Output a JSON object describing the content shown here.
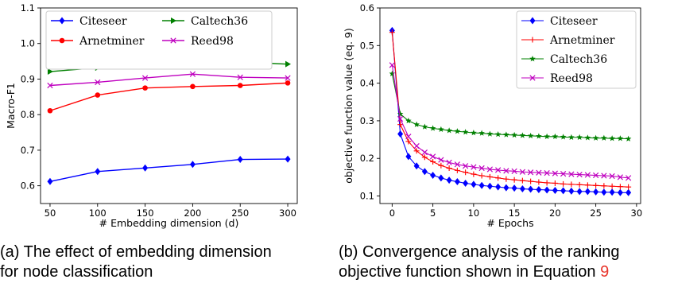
{
  "chart_data": [
    {
      "type": "line",
      "xlabel": "# Embedding dimension (d)",
      "ylabel": "Macro-F1",
      "x": [
        50,
        100,
        150,
        200,
        250,
        300
      ],
      "xticks": [
        50,
        100,
        150,
        200,
        250,
        300
      ],
      "xlim": [
        40,
        310
      ],
      "ylim": [
        0.55,
        1.1
      ],
      "yticks": [
        "0.6",
        "0.7",
        "0.8",
        "0.9",
        "1.0",
        "1.1"
      ],
      "legend_position": "top",
      "grid": false,
      "series": [
        {
          "name": "Citeseer",
          "color": "#0000ff",
          "marker": "diamond",
          "values": [
            0.612,
            0.64,
            0.65,
            0.66,
            0.674,
            0.675
          ]
        },
        {
          "name": "Arnetminer",
          "color": "#ff0000",
          "marker": "circle",
          "values": [
            0.811,
            0.855,
            0.875,
            0.879,
            0.882,
            0.889
          ]
        },
        {
          "name": "Caltech36",
          "color": "#008000",
          "marker": "triangle-right",
          "values": [
            0.921,
            0.932,
            0.945,
            0.943,
            0.948,
            0.942
          ]
        },
        {
          "name": "Reed98",
          "color": "#bf00bf",
          "marker": "x",
          "values": [
            0.882,
            0.891,
            0.903,
            0.914,
            0.905,
            0.903
          ]
        }
      ]
    },
    {
      "type": "line",
      "xlabel": "# Epochs",
      "ylabel": "objective function value (eq. 9)",
      "x": [
        0,
        1,
        2,
        3,
        4,
        5,
        6,
        7,
        8,
        9,
        10,
        11,
        12,
        13,
        14,
        15,
        16,
        17,
        18,
        19,
        20,
        21,
        22,
        23,
        24,
        25,
        26,
        27,
        28,
        29
      ],
      "xticks": [
        0,
        5,
        10,
        15,
        20,
        25,
        30
      ],
      "xlim": [
        -1.5,
        30.5
      ],
      "ylim": [
        0.08,
        0.6
      ],
      "yticks": [
        "0.1",
        "0.2",
        "0.3",
        "0.4",
        "0.5",
        "0.6"
      ],
      "legend_position": "top-right",
      "grid": false,
      "series": [
        {
          "name": "Citeseer",
          "color": "#0000ff",
          "marker": "diamond",
          "values": [
            0.54,
            0.265,
            0.205,
            0.18,
            0.165,
            0.155,
            0.148,
            0.142,
            0.138,
            0.134,
            0.131,
            0.128,
            0.126,
            0.124,
            0.122,
            0.121,
            0.119,
            0.118,
            0.117,
            0.116,
            0.115,
            0.114,
            0.113,
            0.112,
            0.112,
            0.111,
            0.11,
            0.11,
            0.109,
            0.109
          ]
        },
        {
          "name": "Arnetminer",
          "color": "#ff0000",
          "marker": "plus",
          "values": [
            0.535,
            0.29,
            0.245,
            0.22,
            0.203,
            0.191,
            0.181,
            0.174,
            0.168,
            0.163,
            0.158,
            0.154,
            0.151,
            0.148,
            0.145,
            0.143,
            0.141,
            0.139,
            0.137,
            0.135,
            0.134,
            0.132,
            0.131,
            0.13,
            0.129,
            0.128,
            0.127,
            0.126,
            0.125,
            0.124
          ]
        },
        {
          "name": "Caltech36",
          "color": "#008000",
          "marker": "star",
          "values": [
            0.425,
            0.318,
            0.3,
            0.29,
            0.284,
            0.28,
            0.277,
            0.274,
            0.272,
            0.27,
            0.268,
            0.267,
            0.265,
            0.264,
            0.263,
            0.262,
            0.261,
            0.26,
            0.259,
            0.258,
            0.258,
            0.257,
            0.256,
            0.256,
            0.255,
            0.254,
            0.254,
            0.253,
            0.253,
            0.252
          ]
        },
        {
          "name": "Reed98",
          "color": "#bf00bf",
          "marker": "x",
          "values": [
            0.448,
            0.305,
            0.258,
            0.233,
            0.216,
            0.205,
            0.196,
            0.189,
            0.184,
            0.18,
            0.177,
            0.174,
            0.171,
            0.169,
            0.167,
            0.166,
            0.164,
            0.163,
            0.162,
            0.161,
            0.16,
            0.159,
            0.158,
            0.157,
            0.156,
            0.155,
            0.154,
            0.153,
            0.15,
            0.148
          ]
        }
      ]
    }
  ],
  "captions": {
    "a_line1": "(a) The effect of embedding dimension",
    "a_line2": "for node classification",
    "b_line1": "(b) Convergence analysis of the ranking",
    "b_line2": "objective function shown in Equation",
    "b_ref": "9"
  }
}
